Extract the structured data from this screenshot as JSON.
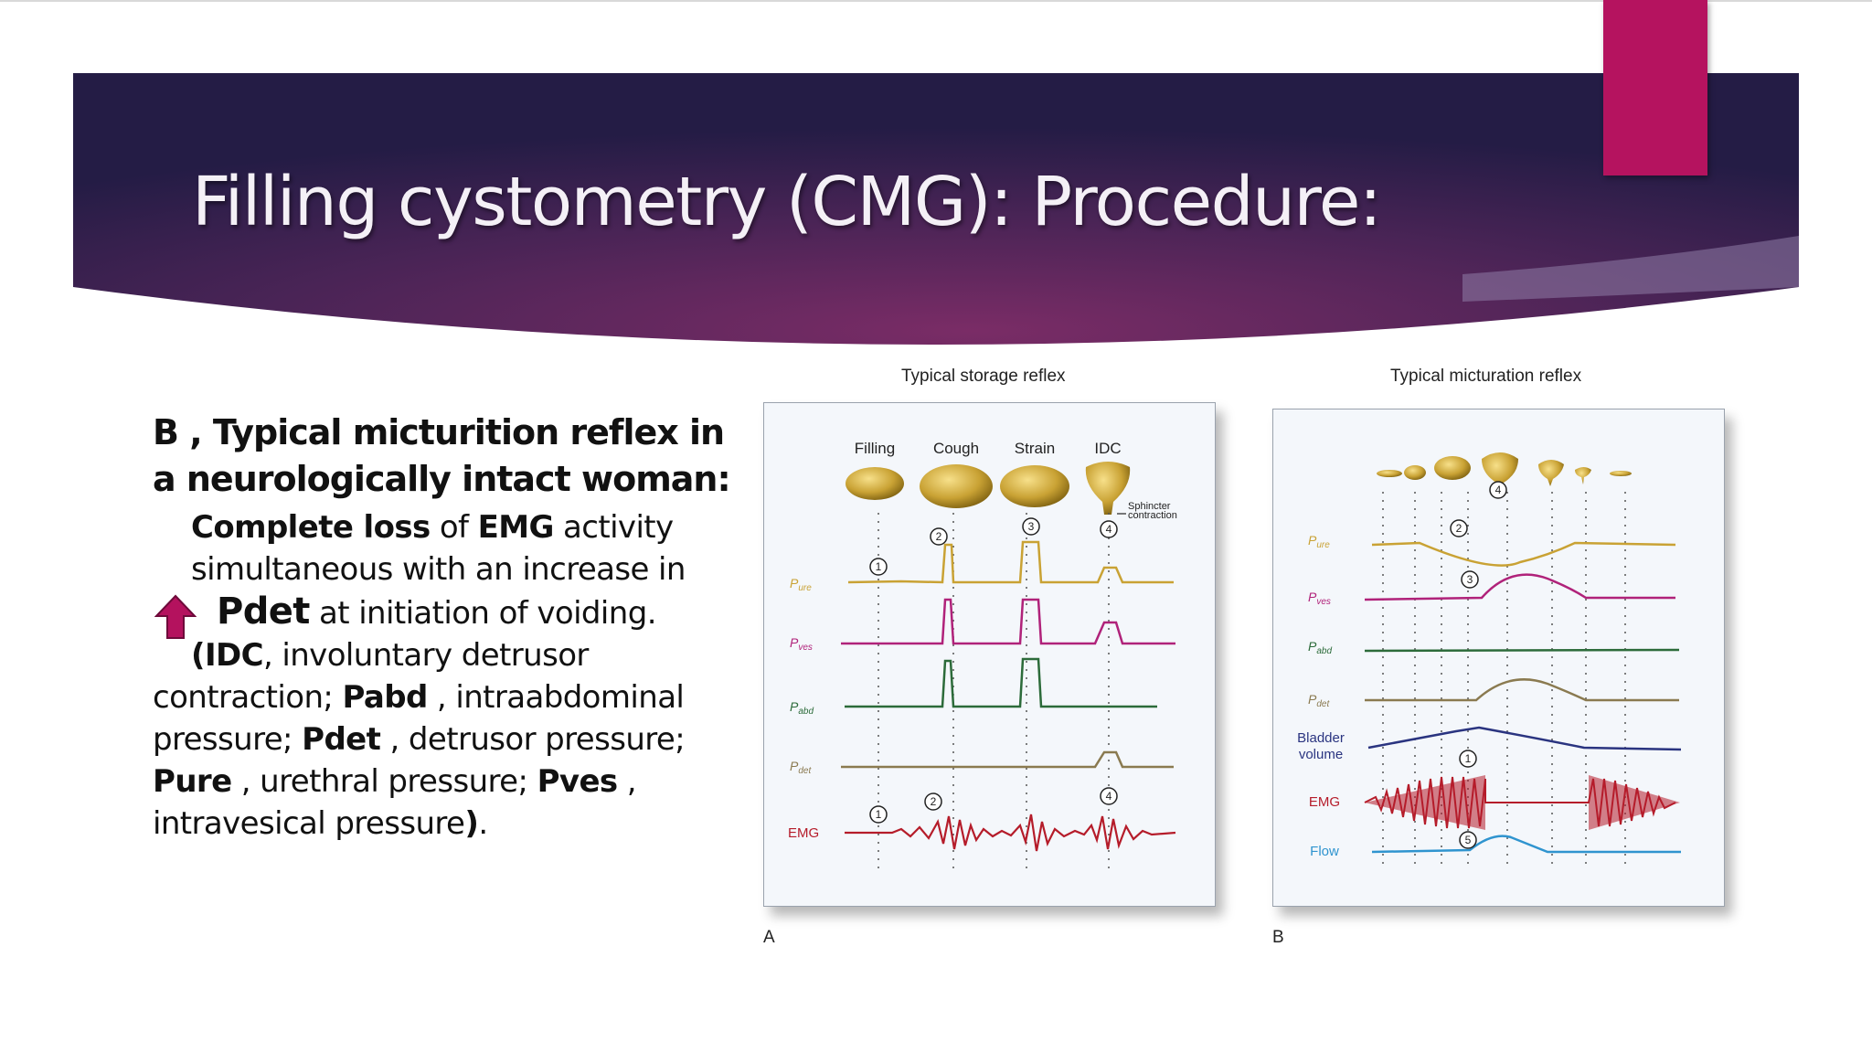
{
  "slide": {
    "title": "Filling cystometry (CMG): Procedure:",
    "colors": {
      "banner_dark": "#2a1f4e",
      "banner_mid": "#6b2a62",
      "accent": "#b5135f",
      "arrow": "#b4125e"
    }
  },
  "body": {
    "heading": "B , Typical micturition reflex in a neurologically intact woman:",
    "p1_b1": "Complete loss",
    "p1_t1": " of ",
    "p1_b2": "EMG",
    "p1_t2": " activity simultaneous with an increase in",
    "arrow_icon": "up-arrow-icon",
    "p2_b1": "Pdet",
    "p2_t1": " at initiation of voiding.",
    "p3_b1": "(IDC",
    "p3_t1": ", involuntary detrusor contraction; ",
    "p3_b2": "Pabd",
    "p3_t2": " , intraabdominal pressure; ",
    "p3_b3": "Pdet",
    "p3_t3": " , detrusor pressure; ",
    "p3_b4": "Pure",
    "p3_t4": " , urethral pressure; ",
    "p3_b5": "Pves",
    "p3_t5": " , intravesical pressure",
    "p3_b6": ")",
    "p3_t6": "."
  },
  "figure": {
    "panel_a": {
      "title": "Typical storage reflex",
      "letter": "A",
      "phases": [
        "Filling",
        "Cough",
        "Strain",
        "IDC"
      ],
      "sphincter_label": [
        "Sphincter",
        "contraction"
      ],
      "traces": [
        {
          "label": "P",
          "sub": "ure"
        },
        {
          "label": "P",
          "sub": "ves"
        },
        {
          "label": "P",
          "sub": "abd"
        },
        {
          "label": "P",
          "sub": "det"
        },
        {
          "label": "EMG",
          "sub": ""
        }
      ],
      "markers": [
        "1",
        "2",
        "3",
        "4",
        "1",
        "2",
        "4"
      ]
    },
    "panel_b": {
      "title": "Typical micturation reflex",
      "letter": "B",
      "traces": [
        {
          "label": "P",
          "sub": "ure"
        },
        {
          "label": "P",
          "sub": "ves"
        },
        {
          "label": "P",
          "sub": "abd"
        },
        {
          "label": "P",
          "sub": "det"
        },
        {
          "label": "Bladder",
          "sub": "volume"
        },
        {
          "label": "EMG",
          "sub": ""
        },
        {
          "label": "Flow",
          "sub": ""
        }
      ],
      "markers": [
        "4",
        "2",
        "3",
        "1",
        "5"
      ]
    }
  }
}
